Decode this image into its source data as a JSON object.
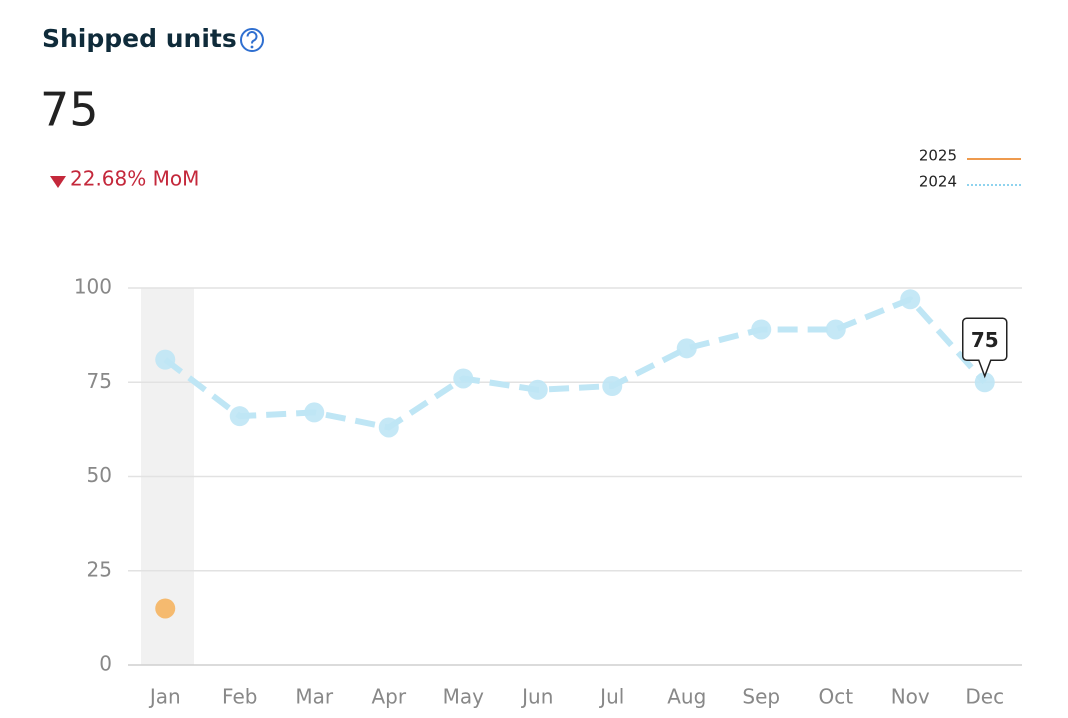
{
  "header": {
    "title": "Shipped units",
    "value": "75",
    "change": "22.68% MoM"
  },
  "chart_data": {
    "type": "line",
    "categories": [
      "Jan",
      "Feb",
      "Mar",
      "Apr",
      "May",
      "Jun",
      "Jul",
      "Aug",
      "Sep",
      "Oct",
      "Nov",
      "Dec"
    ],
    "series": [
      {
        "name": "2025",
        "color": "#f5b461",
        "line_style": "solid",
        "values": [
          15,
          null,
          null,
          null,
          null,
          null,
          null,
          null,
          null,
          null,
          null,
          null
        ]
      },
      {
        "name": "2024",
        "color": "#bfe6f5",
        "line_style": "dashed",
        "values": [
          81,
          66,
          67,
          63,
          76,
          73,
          74,
          84,
          89,
          89,
          97,
          75
        ]
      }
    ],
    "ylim": [
      0,
      100
    ],
    "yticks": [
      0,
      25,
      50,
      75,
      100
    ],
    "grid": true
  }
}
